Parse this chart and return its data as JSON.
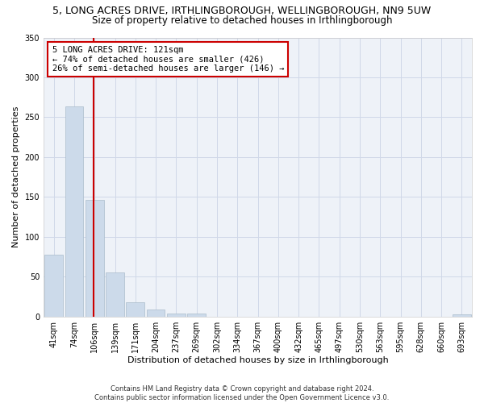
{
  "title1": "5, LONG ACRES DRIVE, IRTHLINGBOROUGH, WELLINGBOROUGH, NN9 5UW",
  "title2": "Size of property relative to detached houses in Irthlingborough",
  "xlabel": "Distribution of detached houses by size in Irthlingborough",
  "ylabel": "Number of detached properties",
  "bar_labels": [
    "41sqm",
    "74sqm",
    "106sqm",
    "139sqm",
    "171sqm",
    "204sqm",
    "237sqm",
    "269sqm",
    "302sqm",
    "334sqm",
    "367sqm",
    "400sqm",
    "432sqm",
    "465sqm",
    "497sqm",
    "530sqm",
    "563sqm",
    "595sqm",
    "628sqm",
    "660sqm",
    "693sqm"
  ],
  "bar_heights": [
    78,
    264,
    146,
    55,
    18,
    9,
    4,
    4,
    0,
    0,
    0,
    0,
    0,
    0,
    0,
    0,
    0,
    0,
    0,
    0,
    3
  ],
  "bar_color": "#ccdaea",
  "bar_edgecolor": "#aabccc",
  "grid_color": "#d0d8e8",
  "annotation_text": "5 LONG ACRES DRIVE: 121sqm\n← 74% of detached houses are smaller (426)\n26% of semi-detached houses are larger (146) →",
  "vline_color": "#cc0000",
  "annotation_box_edgecolor": "#cc0000",
  "ylim": [
    0,
    350
  ],
  "yticks": [
    0,
    50,
    100,
    150,
    200,
    250,
    300,
    350
  ],
  "footer": "Contains HM Land Registry data © Crown copyright and database right 2024.\nContains public sector information licensed under the Open Government Licence v3.0.",
  "bg_color": "#eef2f8",
  "title1_fontsize": 9,
  "title2_fontsize": 8.5,
  "annotation_fontsize": 7.5,
  "xlabel_fontsize": 8,
  "ylabel_fontsize": 8,
  "tick_fontsize": 7,
  "footer_fontsize": 6
}
